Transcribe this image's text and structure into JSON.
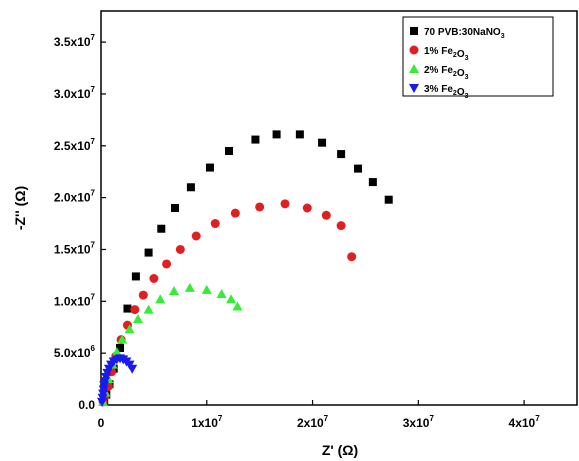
{
  "chart_data": {
    "type": "scatter",
    "xlabel": "Z' (Ω)",
    "ylabel": "-Z'' (Ω)",
    "xlim": [
      0,
      45000000
    ],
    "ylim": [
      0,
      38000000
    ],
    "x_ticks": [
      {
        "value": 0,
        "mant": "0",
        "exp": ""
      },
      {
        "value": 10000000,
        "mant": "1x10",
        "exp": "7"
      },
      {
        "value": 20000000,
        "mant": "2x10",
        "exp": "7"
      },
      {
        "value": 30000000,
        "mant": "3x10",
        "exp": "7"
      },
      {
        "value": 40000000,
        "mant": "4x10",
        "exp": "7"
      }
    ],
    "y_ticks": [
      {
        "value": 0,
        "mant": "0.0",
        "exp": ""
      },
      {
        "value": 5000000,
        "mant": "5.0x10",
        "exp": "6"
      },
      {
        "value": 10000000,
        "mant": "1.0x10",
        "exp": "7"
      },
      {
        "value": 15000000,
        "mant": "1.5x10",
        "exp": "7"
      },
      {
        "value": 20000000,
        "mant": "2.0x10",
        "exp": "7"
      },
      {
        "value": 25000000,
        "mant": "2.5x10",
        "exp": "7"
      },
      {
        "value": 30000000,
        "mant": "3.0x10",
        "exp": "7"
      },
      {
        "value": 35000000,
        "mant": "3.5x10",
        "exp": "7"
      }
    ],
    "legend_position": "top-right",
    "series": [
      {
        "name": "70 PVB:30NaNO3",
        "label_parts": [
          [
            "70 PVB:30NaNO",
            ""
          ],
          [
            "3",
            "sub"
          ]
        ],
        "marker": "square",
        "color": "#000000",
        "x": [
          300000,
          500000,
          800000,
          1200000,
          1800000,
          2500000,
          3300000,
          4500000,
          5700000,
          7000000,
          8500000,
          10300000,
          12100000,
          14600000,
          16600000,
          18800000,
          20900000,
          22700000,
          24300000,
          25700000,
          27200000
        ],
        "y": [
          400000,
          1000000,
          2000000,
          3500000,
          5500000,
          9300000,
          12400000,
          14700000,
          17000000,
          19000000,
          21000000,
          22900000,
          24500000,
          25600000,
          26100000,
          26100000,
          25300000,
          24200000,
          22800000,
          21500000,
          19800000
        ]
      },
      {
        "name": "1% Fe2O3",
        "label_parts": [
          [
            "1% Fe",
            ""
          ],
          [
            "2",
            "sub"
          ],
          [
            "O",
            ""
          ],
          [
            "3",
            "sub"
          ]
        ],
        "marker": "circle",
        "color": "#e02020",
        "x": [
          200000,
          400000,
          700000,
          1000000,
          1400000,
          1900000,
          2500000,
          3200000,
          4000000,
          5000000,
          6200000,
          7500000,
          9000000,
          10800000,
          12700000,
          15000000,
          17400000,
          19500000,
          21300000,
          22700000,
          23700000
        ],
        "y": [
          300000,
          900000,
          1800000,
          3200000,
          4700000,
          6300000,
          7700000,
          9200000,
          10600000,
          12200000,
          13600000,
          15000000,
          16300000,
          17500000,
          18500000,
          19100000,
          19400000,
          19000000,
          18300000,
          17300000,
          14300000
        ]
      },
      {
        "name": "2% Fe2O3",
        "label_parts": [
          [
            "2% Fe",
            ""
          ],
          [
            "2",
            "sub"
          ],
          [
            "O",
            ""
          ],
          [
            "3",
            "sub"
          ]
        ],
        "marker": "triangle-up",
        "color": "#33ee33",
        "x": [
          200000,
          400000,
          700000,
          1100000,
          1500000,
          2000000,
          2700000,
          3500000,
          4500000,
          5600000,
          6900000,
          8400000,
          10000000,
          11400000,
          12300000,
          12900000
        ],
        "y": [
          300000,
          1200000,
          2500000,
          3900000,
          5100000,
          6300000,
          7300000,
          8300000,
          9200000,
          10200000,
          11000000,
          11300000,
          11100000,
          10700000,
          10200000,
          9500000
        ]
      },
      {
        "name": "3% Fe2O3",
        "label_parts": [
          [
            "3% Fe",
            ""
          ],
          [
            "2",
            "sub"
          ],
          [
            "O",
            ""
          ],
          [
            "3",
            "sub"
          ]
        ],
        "marker": "triangle-down",
        "color": "#1a1aee",
        "x": [
          100000,
          150000,
          200000,
          250000,
          300000,
          380000,
          480000,
          600000,
          750000,
          950000,
          1200000,
          1500000,
          1800000,
          2100000,
          2400000,
          2700000,
          2950000
        ],
        "y": [
          300000,
          700000,
          1100000,
          1500000,
          1900000,
          2300000,
          2700000,
          3100000,
          3500000,
          3900000,
          4200000,
          4400000,
          4500000,
          4400000,
          4200000,
          3900000,
          3500000
        ]
      }
    ]
  }
}
